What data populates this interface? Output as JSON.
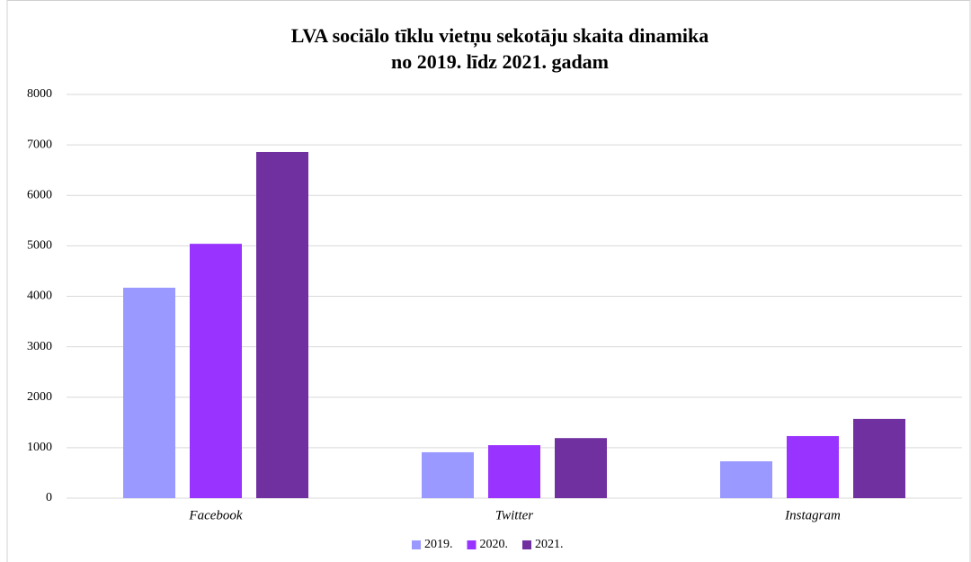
{
  "chart_data": {
    "type": "bar",
    "title": [
      "LVA sociālo tīklu vietņu sekotāju skaita dinamika",
      "no 2019. līdz 2021. gadam"
    ],
    "categories": [
      "Facebook",
      "Twitter",
      "Instagram"
    ],
    "series": [
      {
        "name": "2019.",
        "color": "#9999ff",
        "values": [
          4170,
          910,
          730
        ]
      },
      {
        "name": "2020.",
        "color": "#9933ff",
        "values": [
          5040,
          1050,
          1230
        ]
      },
      {
        "name": "2021.",
        "color": "#7030a0",
        "values": [
          6860,
          1190,
          1570
        ]
      }
    ],
    "ylim": [
      0,
      8000
    ],
    "yticks": [
      0,
      1000,
      2000,
      3000,
      4000,
      5000,
      6000,
      7000,
      8000
    ],
    "grid": true,
    "legend": "bottom"
  }
}
